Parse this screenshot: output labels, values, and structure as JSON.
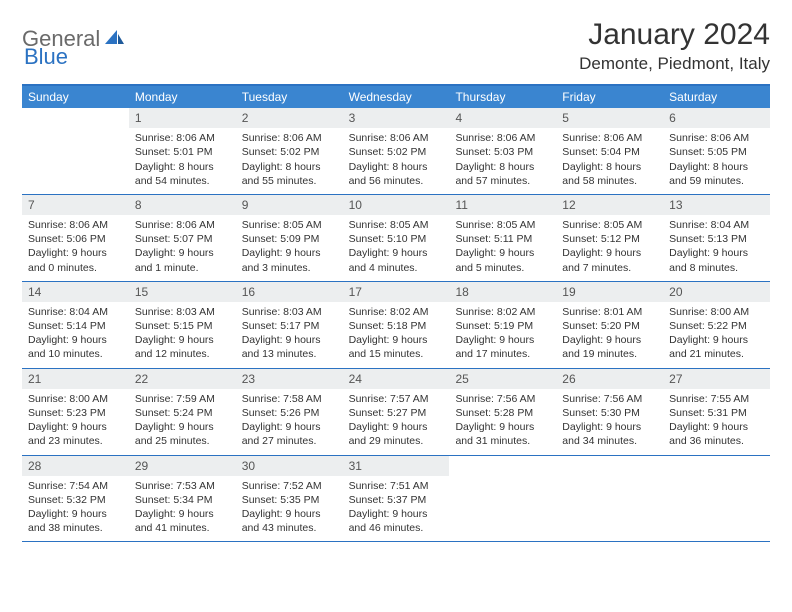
{
  "logo": {
    "text1": "General",
    "text2": "Blue"
  },
  "title": "January 2024",
  "location": "Demonte, Piedmont, Italy",
  "colors": {
    "header_bg": "#3a85d0",
    "header_border": "#2b72c2",
    "daynum_bg": "#eceeef",
    "text": "#333333"
  },
  "day_labels": [
    "Sunday",
    "Monday",
    "Tuesday",
    "Wednesday",
    "Thursday",
    "Friday",
    "Saturday"
  ],
  "weeks": [
    [
      {
        "n": "",
        "sr": "",
        "ss": "",
        "dl1": "",
        "dl2": ""
      },
      {
        "n": "1",
        "sr": "Sunrise: 8:06 AM",
        "ss": "Sunset: 5:01 PM",
        "dl1": "Daylight: 8 hours",
        "dl2": "and 54 minutes."
      },
      {
        "n": "2",
        "sr": "Sunrise: 8:06 AM",
        "ss": "Sunset: 5:02 PM",
        "dl1": "Daylight: 8 hours",
        "dl2": "and 55 minutes."
      },
      {
        "n": "3",
        "sr": "Sunrise: 8:06 AM",
        "ss": "Sunset: 5:02 PM",
        "dl1": "Daylight: 8 hours",
        "dl2": "and 56 minutes."
      },
      {
        "n": "4",
        "sr": "Sunrise: 8:06 AM",
        "ss": "Sunset: 5:03 PM",
        "dl1": "Daylight: 8 hours",
        "dl2": "and 57 minutes."
      },
      {
        "n": "5",
        "sr": "Sunrise: 8:06 AM",
        "ss": "Sunset: 5:04 PM",
        "dl1": "Daylight: 8 hours",
        "dl2": "and 58 minutes."
      },
      {
        "n": "6",
        "sr": "Sunrise: 8:06 AM",
        "ss": "Sunset: 5:05 PM",
        "dl1": "Daylight: 8 hours",
        "dl2": "and 59 minutes."
      }
    ],
    [
      {
        "n": "7",
        "sr": "Sunrise: 8:06 AM",
        "ss": "Sunset: 5:06 PM",
        "dl1": "Daylight: 9 hours",
        "dl2": "and 0 minutes."
      },
      {
        "n": "8",
        "sr": "Sunrise: 8:06 AM",
        "ss": "Sunset: 5:07 PM",
        "dl1": "Daylight: 9 hours",
        "dl2": "and 1 minute."
      },
      {
        "n": "9",
        "sr": "Sunrise: 8:05 AM",
        "ss": "Sunset: 5:09 PM",
        "dl1": "Daylight: 9 hours",
        "dl2": "and 3 minutes."
      },
      {
        "n": "10",
        "sr": "Sunrise: 8:05 AM",
        "ss": "Sunset: 5:10 PM",
        "dl1": "Daylight: 9 hours",
        "dl2": "and 4 minutes."
      },
      {
        "n": "11",
        "sr": "Sunrise: 8:05 AM",
        "ss": "Sunset: 5:11 PM",
        "dl1": "Daylight: 9 hours",
        "dl2": "and 5 minutes."
      },
      {
        "n": "12",
        "sr": "Sunrise: 8:05 AM",
        "ss": "Sunset: 5:12 PM",
        "dl1": "Daylight: 9 hours",
        "dl2": "and 7 minutes."
      },
      {
        "n": "13",
        "sr": "Sunrise: 8:04 AM",
        "ss": "Sunset: 5:13 PM",
        "dl1": "Daylight: 9 hours",
        "dl2": "and 8 minutes."
      }
    ],
    [
      {
        "n": "14",
        "sr": "Sunrise: 8:04 AM",
        "ss": "Sunset: 5:14 PM",
        "dl1": "Daylight: 9 hours",
        "dl2": "and 10 minutes."
      },
      {
        "n": "15",
        "sr": "Sunrise: 8:03 AM",
        "ss": "Sunset: 5:15 PM",
        "dl1": "Daylight: 9 hours",
        "dl2": "and 12 minutes."
      },
      {
        "n": "16",
        "sr": "Sunrise: 8:03 AM",
        "ss": "Sunset: 5:17 PM",
        "dl1": "Daylight: 9 hours",
        "dl2": "and 13 minutes."
      },
      {
        "n": "17",
        "sr": "Sunrise: 8:02 AM",
        "ss": "Sunset: 5:18 PM",
        "dl1": "Daylight: 9 hours",
        "dl2": "and 15 minutes."
      },
      {
        "n": "18",
        "sr": "Sunrise: 8:02 AM",
        "ss": "Sunset: 5:19 PM",
        "dl1": "Daylight: 9 hours",
        "dl2": "and 17 minutes."
      },
      {
        "n": "19",
        "sr": "Sunrise: 8:01 AM",
        "ss": "Sunset: 5:20 PM",
        "dl1": "Daylight: 9 hours",
        "dl2": "and 19 minutes."
      },
      {
        "n": "20",
        "sr": "Sunrise: 8:00 AM",
        "ss": "Sunset: 5:22 PM",
        "dl1": "Daylight: 9 hours",
        "dl2": "and 21 minutes."
      }
    ],
    [
      {
        "n": "21",
        "sr": "Sunrise: 8:00 AM",
        "ss": "Sunset: 5:23 PM",
        "dl1": "Daylight: 9 hours",
        "dl2": "and 23 minutes."
      },
      {
        "n": "22",
        "sr": "Sunrise: 7:59 AM",
        "ss": "Sunset: 5:24 PM",
        "dl1": "Daylight: 9 hours",
        "dl2": "and 25 minutes."
      },
      {
        "n": "23",
        "sr": "Sunrise: 7:58 AM",
        "ss": "Sunset: 5:26 PM",
        "dl1": "Daylight: 9 hours",
        "dl2": "and 27 minutes."
      },
      {
        "n": "24",
        "sr": "Sunrise: 7:57 AM",
        "ss": "Sunset: 5:27 PM",
        "dl1": "Daylight: 9 hours",
        "dl2": "and 29 minutes."
      },
      {
        "n": "25",
        "sr": "Sunrise: 7:56 AM",
        "ss": "Sunset: 5:28 PM",
        "dl1": "Daylight: 9 hours",
        "dl2": "and 31 minutes."
      },
      {
        "n": "26",
        "sr": "Sunrise: 7:56 AM",
        "ss": "Sunset: 5:30 PM",
        "dl1": "Daylight: 9 hours",
        "dl2": "and 34 minutes."
      },
      {
        "n": "27",
        "sr": "Sunrise: 7:55 AM",
        "ss": "Sunset: 5:31 PM",
        "dl1": "Daylight: 9 hours",
        "dl2": "and 36 minutes."
      }
    ],
    [
      {
        "n": "28",
        "sr": "Sunrise: 7:54 AM",
        "ss": "Sunset: 5:32 PM",
        "dl1": "Daylight: 9 hours",
        "dl2": "and 38 minutes."
      },
      {
        "n": "29",
        "sr": "Sunrise: 7:53 AM",
        "ss": "Sunset: 5:34 PM",
        "dl1": "Daylight: 9 hours",
        "dl2": "and 41 minutes."
      },
      {
        "n": "30",
        "sr": "Sunrise: 7:52 AM",
        "ss": "Sunset: 5:35 PM",
        "dl1": "Daylight: 9 hours",
        "dl2": "and 43 minutes."
      },
      {
        "n": "31",
        "sr": "Sunrise: 7:51 AM",
        "ss": "Sunset: 5:37 PM",
        "dl1": "Daylight: 9 hours",
        "dl2": "and 46 minutes."
      },
      {
        "n": "",
        "sr": "",
        "ss": "",
        "dl1": "",
        "dl2": ""
      },
      {
        "n": "",
        "sr": "",
        "ss": "",
        "dl1": "",
        "dl2": ""
      },
      {
        "n": "",
        "sr": "",
        "ss": "",
        "dl1": "",
        "dl2": ""
      }
    ]
  ]
}
